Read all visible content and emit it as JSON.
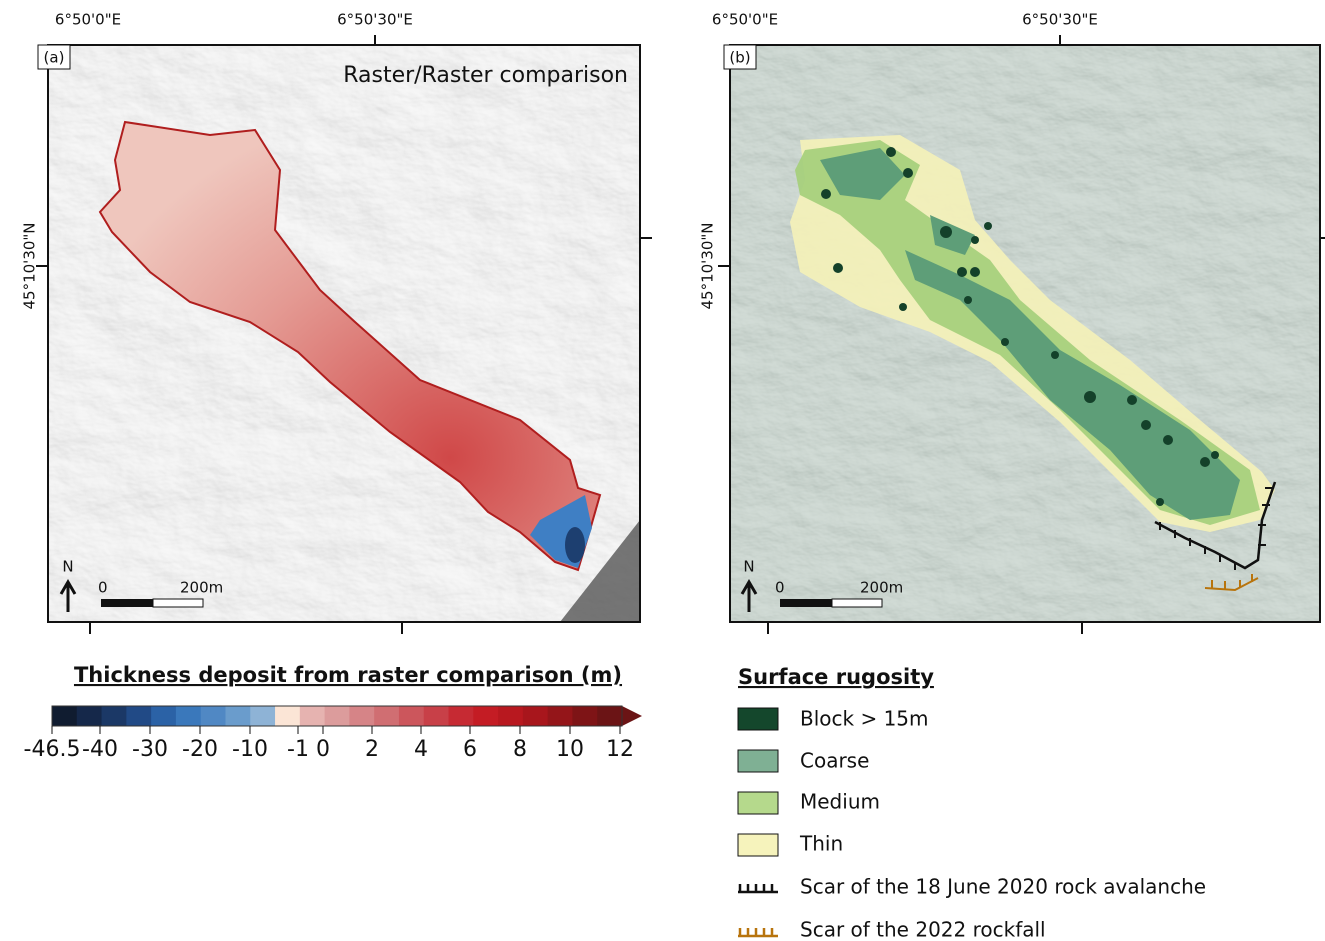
{
  "panel_a": {
    "label": "(a)",
    "title": "Raster/Raster comparison",
    "lon_labels": [
      "6°50'0\"E",
      "6°50'30\"E"
    ],
    "lat_label": "45°10'30\"N",
    "north": "N",
    "scale_labels": [
      "0",
      "200m"
    ]
  },
  "panel_b": {
    "label": "(b)",
    "lon_labels": [
      "6°50'0\"E",
      "6°50'30\"E"
    ],
    "lat_label": "45°10'30\"N",
    "north": "N",
    "scale_labels": [
      "0",
      "200m"
    ]
  },
  "colorbar": {
    "title": "Thickness deposit from raster comparison (m)",
    "ticks": [
      -46.5,
      -40,
      -30,
      -20,
      -10,
      -1,
      0,
      2,
      4,
      6,
      8,
      10,
      12
    ]
  },
  "legend": {
    "title": "Surface rugosity",
    "items": [
      "Block > 15m",
      "Coarse",
      "Medium",
      "Thin",
      "Scar of the 18 June 2020 rock avalanche",
      "Scar of the 2022 rockfall"
    ]
  }
}
